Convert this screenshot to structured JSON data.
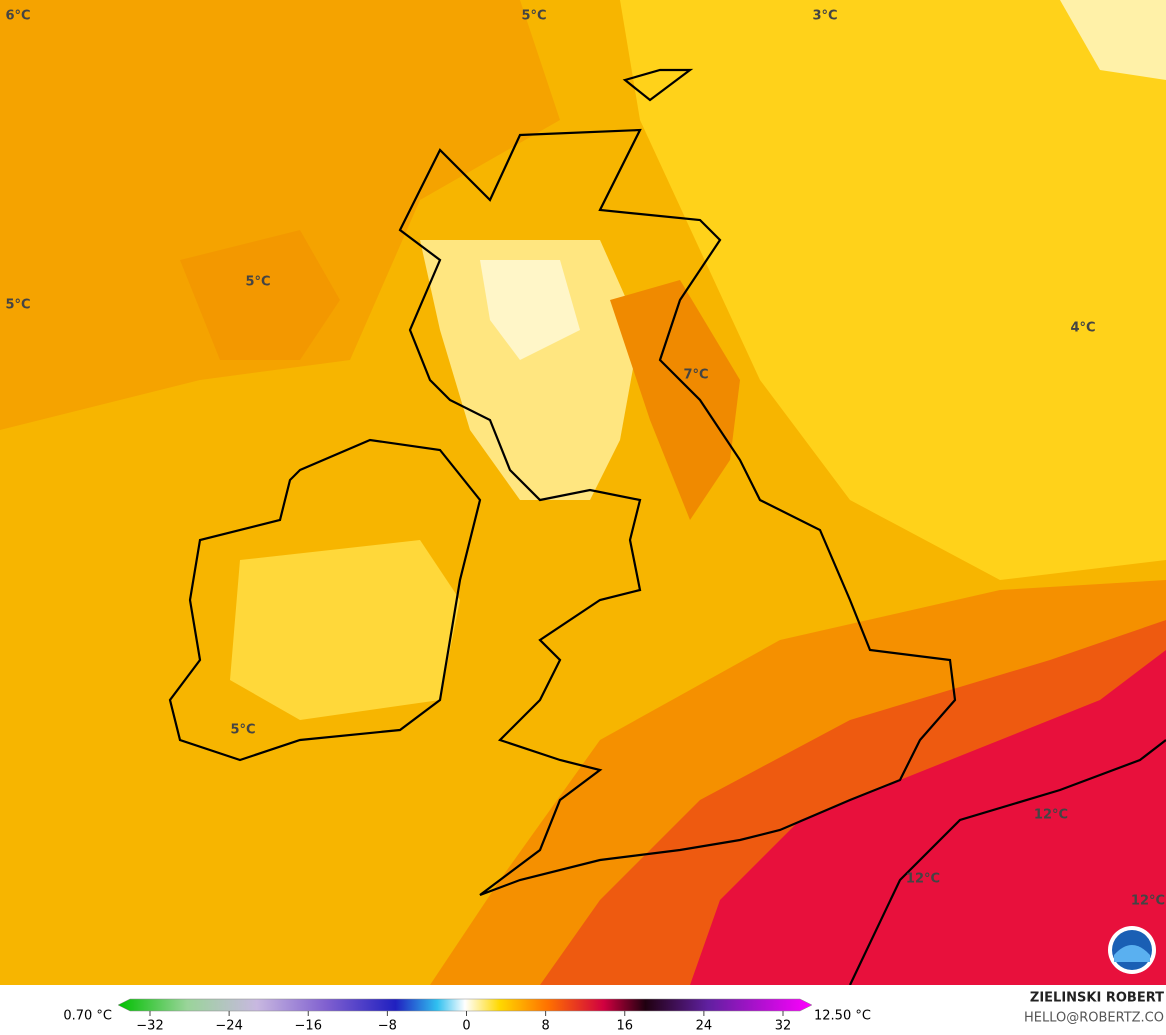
{
  "map": {
    "labels": [
      "6°C",
      "5°C",
      "3°C",
      "5°C",
      "5°C",
      "4°C",
      "7°C",
      "5°C",
      "12°C",
      "12°C",
      "12°C"
    ],
    "colorbar": {
      "min_label": "0.70 °C",
      "max_label": "12.50 °C",
      "ticks": [
        "−32",
        "−24",
        "−16",
        "−8",
        "0",
        "8",
        "16",
        "24",
        "32"
      ]
    },
    "credit": {
      "author": "ZIELINSKI ROBERT",
      "contact": "HELLO@ROBERTZ.CO"
    }
  }
}
